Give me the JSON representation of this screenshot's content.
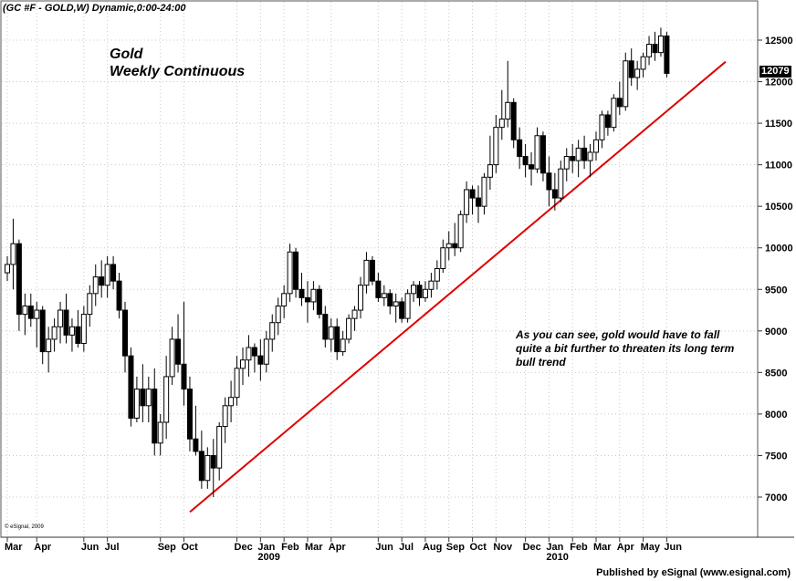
{
  "header": {
    "symbol_line": "(GC #F - GOLD,W) Dynamic,0:00-24:00"
  },
  "footer": {
    "published": "Published by eSignal (www.esignal.com)",
    "copyright": "© eSignal, 2009"
  },
  "annotation": "As you can see, gold would have to fall quite a bit further to threaten its long term bull trend",
  "chart_data": {
    "type": "candlestick",
    "title": "Gold",
    "subtitle": "Weekly Continuous",
    "last_value_label": "12079",
    "ylim": [
      6680,
      12700
    ],
    "y_ticks": [
      7000,
      7500,
      8000,
      8500,
      9000,
      9500,
      10000,
      10500,
      11000,
      11500,
      12000,
      12500
    ],
    "x_ticks": [
      {
        "label": "Mar",
        "week": 0
      },
      {
        "label": "Apr",
        "week": 5
      },
      {
        "label": "Jun",
        "week": 13
      },
      {
        "label": "Jul",
        "week": 17
      },
      {
        "label": "Sep",
        "week": 26
      },
      {
        "label": "Oct",
        "week": 30
      },
      {
        "label": "Dec",
        "week": 39
      },
      {
        "label": "Jan",
        "week": 43
      },
      {
        "label": "Feb",
        "week": 47
      },
      {
        "label": "Mar",
        "week": 51
      },
      {
        "label": "Apr",
        "week": 55
      },
      {
        "label": "Jun",
        "week": 63
      },
      {
        "label": "Jul",
        "week": 67
      },
      {
        "label": "Aug",
        "week": 71
      },
      {
        "label": "Sep",
        "week": 75
      },
      {
        "label": "Oct",
        "week": 79
      },
      {
        "label": "Nov",
        "week": 83
      },
      {
        "label": "Dec",
        "week": 88
      },
      {
        "label": "Jan",
        "week": 92
      },
      {
        "label": "Feb",
        "week": 96
      },
      {
        "label": "Mar",
        "week": 100
      },
      {
        "label": "Apr",
        "week": 104
      },
      {
        "label": "May",
        "week": 108
      },
      {
        "label": "Jun",
        "week": 112
      }
    ],
    "year_labels": [
      {
        "label": "2009",
        "week": 43
      },
      {
        "label": "2010",
        "week": 92
      }
    ],
    "trendline": {
      "color": "#dd0000",
      "start": {
        "week": 31,
        "value": 6820
      },
      "end": {
        "week": 122,
        "value": 12240
      }
    },
    "candles": [
      [
        0,
        9700,
        9900,
        9600,
        9800
      ],
      [
        1,
        9800,
        10350,
        9500,
        10050
      ],
      [
        2,
        10050,
        10100,
        9000,
        9200
      ],
      [
        3,
        9200,
        9450,
        8950,
        9300
      ],
      [
        4,
        9300,
        9450,
        9050,
        9150
      ],
      [
        5,
        9150,
        9350,
        8800,
        9250
      ],
      [
        6,
        9250,
        9300,
        8600,
        8750
      ],
      [
        7,
        8750,
        9050,
        8500,
        8900
      ],
      [
        8,
        8900,
        9150,
        8750,
        9050
      ],
      [
        9,
        9050,
        9350,
        8850,
        9250
      ],
      [
        10,
        9250,
        9450,
        8850,
        8950
      ],
      [
        11,
        8950,
        9150,
        8750,
        9050
      ],
      [
        12,
        9050,
        9250,
        8800,
        8850
      ],
      [
        13,
        8850,
        9300,
        8750,
        9200
      ],
      [
        14,
        9200,
        9550,
        9050,
        9450
      ],
      [
        15,
        9450,
        9800,
        9300,
        9650
      ],
      [
        16,
        9650,
        9850,
        9400,
        9550
      ],
      [
        17,
        9550,
        9900,
        9400,
        9800
      ],
      [
        18,
        9800,
        9900,
        9500,
        9600
      ],
      [
        19,
        9600,
        9700,
        9150,
        9250
      ],
      [
        20,
        9250,
        9350,
        8500,
        8700
      ],
      [
        21,
        8700,
        8800,
        7850,
        7950
      ],
      [
        22,
        7950,
        8450,
        7900,
        8300
      ],
      [
        23,
        8300,
        8600,
        7900,
        8100
      ],
      [
        24,
        8100,
        8450,
        7900,
        8300
      ],
      [
        25,
        8300,
        8550,
        7500,
        7650
      ],
      [
        26,
        7650,
        8000,
        7500,
        7900
      ],
      [
        27,
        7900,
        8700,
        7700,
        8450
      ],
      [
        28,
        8450,
        9050,
        8350,
        8900
      ],
      [
        29,
        8900,
        9200,
        8500,
        8600
      ],
      [
        30,
        8600,
        9350,
        8100,
        8300
      ],
      [
        31,
        8300,
        8450,
        7550,
        7700
      ],
      [
        32,
        7700,
        8100,
        7500,
        7550
      ],
      [
        33,
        7550,
        7800,
        7100,
        7200
      ],
      [
        34,
        7200,
        7600,
        7100,
        7500
      ],
      [
        35,
        7500,
        7700,
        7000,
        7350
      ],
      [
        36,
        7350,
        7900,
        7200,
        7850
      ],
      [
        37,
        7850,
        8200,
        7650,
        8100
      ],
      [
        38,
        8100,
        8400,
        7900,
        8200
      ],
      [
        39,
        8200,
        8700,
        8100,
        8550
      ],
      [
        40,
        8550,
        8800,
        8350,
        8650
      ],
      [
        41,
        8650,
        8950,
        8450,
        8800
      ],
      [
        42,
        8800,
        8850,
        8500,
        8700
      ],
      [
        43,
        8700,
        8900,
        8400,
        8600
      ],
      [
        44,
        8600,
        9000,
        8500,
        8900
      ],
      [
        45,
        8900,
        9200,
        8750,
        9100
      ],
      [
        46,
        9100,
        9400,
        8950,
        9300
      ],
      [
        47,
        9300,
        9550,
        9150,
        9450
      ],
      [
        48,
        9450,
        10050,
        9350,
        9950
      ],
      [
        49,
        9950,
        10000,
        9400,
        9500
      ],
      [
        50,
        9500,
        9700,
        9300,
        9400
      ],
      [
        51,
        9400,
        9600,
        9100,
        9350
      ],
      [
        52,
        9350,
        9600,
        9250,
        9500
      ],
      [
        53,
        9500,
        9550,
        9150,
        9200
      ],
      [
        54,
        9200,
        9300,
        8800,
        8900
      ],
      [
        55,
        8900,
        9150,
        8750,
        9050
      ],
      [
        56,
        9050,
        9150,
        8650,
        8750
      ],
      [
        57,
        8750,
        9000,
        8700,
        8900
      ],
      [
        58,
        8900,
        9200,
        8850,
        9150
      ],
      [
        59,
        9150,
        9300,
        9000,
        9250
      ],
      [
        60,
        9250,
        9650,
        9150,
        9550
      ],
      [
        61,
        9550,
        9950,
        9450,
        9850
      ],
      [
        62,
        9850,
        9900,
        9550,
        9600
      ],
      [
        63,
        9600,
        9700,
        9350,
        9400
      ],
      [
        64,
        9400,
        9550,
        9300,
        9450
      ],
      [
        65,
        9450,
        9500,
        9200,
        9300
      ],
      [
        66,
        9300,
        9450,
        9100,
        9350
      ],
      [
        67,
        9350,
        9400,
        9100,
        9150
      ],
      [
        68,
        9150,
        9500,
        9100,
        9450
      ],
      [
        69,
        9450,
        9600,
        9350,
        9550
      ],
      [
        70,
        9550,
        9600,
        9300,
        9400
      ],
      [
        71,
        9400,
        9600,
        9350,
        9500
      ],
      [
        72,
        9500,
        9700,
        9400,
        9600
      ],
      [
        73,
        9600,
        9850,
        9500,
        9750
      ],
      [
        74,
        9750,
        10100,
        9700,
        10000
      ],
      [
        75,
        10000,
        10200,
        9850,
        10050
      ],
      [
        76,
        10050,
        10300,
        9900,
        10000
      ],
      [
        77,
        10000,
        10450,
        9950,
        10400
      ],
      [
        78,
        10400,
        10800,
        10300,
        10700
      ],
      [
        79,
        10700,
        10750,
        10400,
        10600
      ],
      [
        80,
        10600,
        10750,
        10300,
        10500
      ],
      [
        81,
        10500,
        10900,
        10400,
        10850
      ],
      [
        82,
        10850,
        11350,
        10700,
        11000
      ],
      [
        83,
        11000,
        11600,
        10900,
        11450
      ],
      [
        84,
        11450,
        11900,
        11300,
        11550
      ],
      [
        85,
        11550,
        12250,
        11450,
        11750
      ],
      [
        86,
        11750,
        11800,
        11200,
        11300
      ],
      [
        87,
        11300,
        11450,
        10950,
        11100
      ],
      [
        88,
        11100,
        11250,
        10850,
        11000
      ],
      [
        89,
        11000,
        11150,
        10750,
        10950
      ],
      [
        90,
        10950,
        11450,
        10900,
        11350
      ],
      [
        91,
        11350,
        11400,
        10800,
        10900
      ],
      [
        92,
        10900,
        11100,
        10500,
        10700
      ],
      [
        93,
        10700,
        10900,
        10450,
        10600
      ],
      [
        94,
        10600,
        11050,
        10550,
        10950
      ],
      [
        95,
        10950,
        11200,
        10800,
        11100
      ],
      [
        96,
        11100,
        11250,
        10900,
        11050
      ],
      [
        97,
        11050,
        11300,
        10850,
        11200
      ],
      [
        98,
        11200,
        11350,
        10950,
        11050
      ],
      [
        99,
        11050,
        11250,
        10850,
        11150
      ],
      [
        100,
        11150,
        11400,
        11050,
        11300
      ],
      [
        101,
        11300,
        11650,
        11200,
        11600
      ],
      [
        102,
        11600,
        11650,
        11350,
        11450
      ],
      [
        103,
        11450,
        11850,
        11400,
        11800
      ],
      [
        104,
        11800,
        12000,
        11600,
        11700
      ],
      [
        105,
        11700,
        12350,
        11650,
        12250
      ],
      [
        106,
        12250,
        12400,
        11950,
        12050
      ],
      [
        107,
        12050,
        12250,
        11900,
        12150
      ],
      [
        108,
        12150,
        12350,
        12050,
        12300
      ],
      [
        109,
        12300,
        12550,
        12200,
        12450
      ],
      [
        110,
        12450,
        12600,
        12250,
        12350
      ],
      [
        111,
        12350,
        12650,
        12300,
        12550
      ],
      [
        112,
        12550,
        12600,
        12050,
        12100
      ]
    ]
  }
}
